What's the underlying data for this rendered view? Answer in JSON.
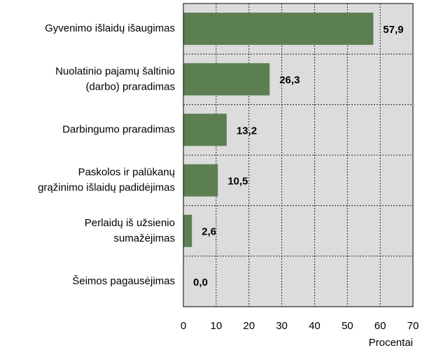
{
  "chart_data": {
    "type": "barh",
    "categories": [
      [
        "Gyvenimo išlaidų išaugimas"
      ],
      [
        "Nuolatinio pajamų šaltinio",
        "(darbo) praradimas"
      ],
      [
        "Darbingumo praradimas"
      ],
      [
        "Paskolos ir palūkanų",
        "grąžinimo išlaidų padidėjimas"
      ],
      [
        "Perlaidų iš užsienio",
        "sumažėjimas"
      ],
      [
        "Šeimos pagausėjimas"
      ]
    ],
    "values": [
      57.9,
      26.3,
      13.2,
      10.5,
      2.6,
      0.0
    ],
    "value_labels": [
      "57,9",
      "26,3",
      "13,2",
      "10,5",
      "2,6",
      "0,0"
    ],
    "color": "#5b7f51",
    "xlim": [
      0,
      70
    ],
    "xticks": [
      0,
      10,
      20,
      30,
      40,
      50,
      60,
      70
    ],
    "xlabel": "Procentai",
    "grid": true
  }
}
